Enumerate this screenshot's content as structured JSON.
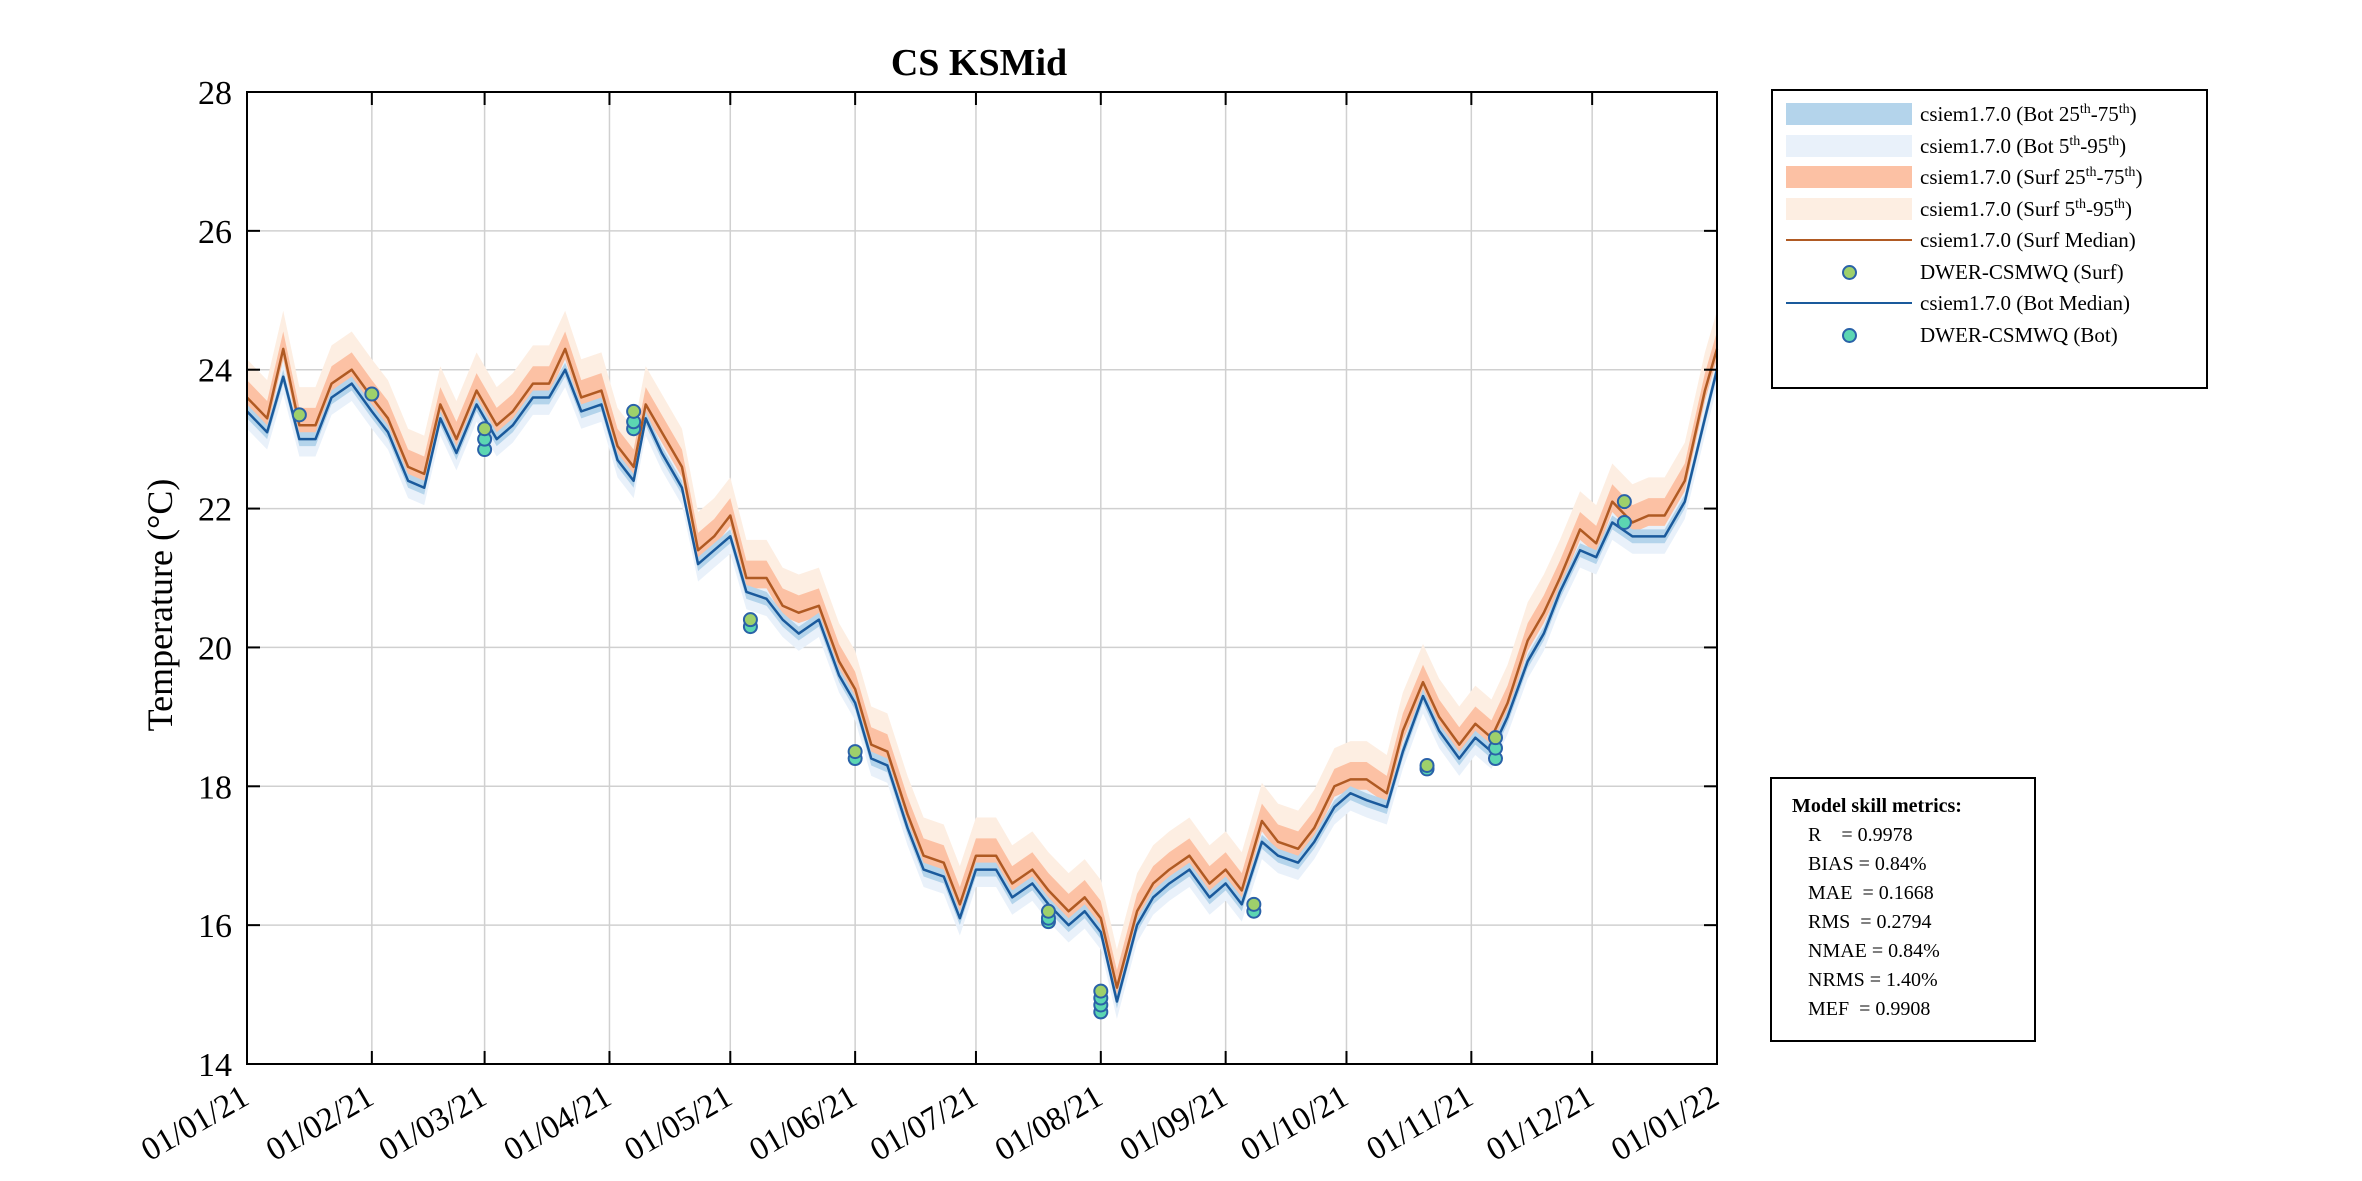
{
  "chart_data": {
    "type": "line",
    "title": "CS KSMid",
    "xlabel": "",
    "ylabel": "Temperature (°C)",
    "ylim": [
      14,
      28
    ],
    "yticks": [
      14,
      16,
      18,
      20,
      22,
      24,
      26,
      28
    ],
    "xlim": [
      "2021-01-01",
      "2022-01-01"
    ],
    "xticks": [
      "2021-01-01",
      "2021-02-01",
      "2021-03-01",
      "2021-04-01",
      "2021-05-01",
      "2021-06-01",
      "2021-07-01",
      "2021-08-01",
      "2021-09-01",
      "2021-10-01",
      "2021-11-01",
      "2021-12-01",
      "2022-01-01"
    ],
    "xticklabels": [
      "01/01/21",
      "01/02/21",
      "01/03/21",
      "01/04/21",
      "01/05/21",
      "01/06/21",
      "01/07/21",
      "01/08/21",
      "01/09/21",
      "01/10/21",
      "01/11/21",
      "01/12/21",
      "01/01/22"
    ],
    "grid": true,
    "legend_position": "outside-top-right",
    "colors": {
      "bot_iqr": "#b4d4eb",
      "bot_90": "#e9f1fa",
      "surf_iqr": "#fcc1a4",
      "surf_90": "#fdeee2",
      "surf_median": "#b05a23",
      "bot_median": "#1a5a9c",
      "obs_surf": "#9ed06b",
      "obs_bot": "#5cd6b2",
      "obs_edge": "#2a62a8"
    },
    "series": [
      {
        "name": "csiem1.7.0 (Surf Median)",
        "kind": "line",
        "x": [
          "2021-01-01",
          "2021-01-06",
          "2021-01-10",
          "2021-01-14",
          "2021-01-18",
          "2021-01-22",
          "2021-01-27",
          "2021-02-01",
          "2021-02-05",
          "2021-02-10",
          "2021-02-14",
          "2021-02-18",
          "2021-02-22",
          "2021-02-27",
          "2021-03-04",
          "2021-03-08",
          "2021-03-13",
          "2021-03-17",
          "2021-03-21",
          "2021-03-25",
          "2021-03-30",
          "2021-04-03",
          "2021-04-07",
          "2021-04-10",
          "2021-04-14",
          "2021-04-19",
          "2021-04-23",
          "2021-04-27",
          "2021-05-01",
          "2021-05-05",
          "2021-05-10",
          "2021-05-14",
          "2021-05-18",
          "2021-05-23",
          "2021-05-28",
          "2021-06-01",
          "2021-06-05",
          "2021-06-09",
          "2021-06-14",
          "2021-06-18",
          "2021-06-23",
          "2021-06-27",
          "2021-07-01",
          "2021-07-06",
          "2021-07-10",
          "2021-07-15",
          "2021-07-19",
          "2021-07-24",
          "2021-07-28",
          "2021-08-01",
          "2021-08-05",
          "2021-08-10",
          "2021-08-14",
          "2021-08-18",
          "2021-08-23",
          "2021-08-28",
          "2021-09-01",
          "2021-09-05",
          "2021-09-10",
          "2021-09-14",
          "2021-09-19",
          "2021-09-23",
          "2021-09-28",
          "2021-10-02",
          "2021-10-06",
          "2021-10-11",
          "2021-10-15",
          "2021-10-20",
          "2021-10-24",
          "2021-10-29",
          "2021-11-02",
          "2021-11-06",
          "2021-11-10",
          "2021-11-15",
          "2021-11-19",
          "2021-11-23",
          "2021-11-28",
          "2021-12-02",
          "2021-12-06",
          "2021-12-11",
          "2021-12-15",
          "2021-12-19",
          "2021-12-24",
          "2021-12-29",
          "2022-01-01"
        ],
        "y": [
          23.6,
          23.3,
          24.3,
          23.2,
          23.2,
          23.8,
          24.0,
          23.6,
          23.3,
          22.6,
          22.5,
          23.5,
          23.0,
          23.7,
          23.2,
          23.4,
          23.8,
          23.8,
          24.3,
          23.6,
          23.7,
          22.9,
          22.6,
          23.5,
          23.1,
          22.6,
          21.4,
          21.6,
          21.9,
          21.0,
          21.0,
          20.6,
          20.5,
          20.6,
          19.8,
          19.4,
          18.6,
          18.5,
          17.6,
          17.0,
          16.9,
          16.3,
          17.0,
          17.0,
          16.6,
          16.8,
          16.5,
          16.2,
          16.4,
          16.1,
          15.1,
          16.2,
          16.6,
          16.8,
          17.0,
          16.6,
          16.8,
          16.5,
          17.5,
          17.2,
          17.1,
          17.4,
          18.0,
          18.1,
          18.1,
          17.9,
          18.8,
          19.5,
          19.0,
          18.6,
          18.9,
          18.7,
          19.2,
          20.1,
          20.5,
          21.0,
          21.7,
          21.5,
          22.1,
          21.8,
          21.9,
          21.9,
          22.4,
          23.7,
          24.3
        ]
      },
      {
        "name": "csiem1.7.0 (Bot Median)",
        "kind": "line",
        "x": [
          "2021-01-01",
          "2021-01-06",
          "2021-01-10",
          "2021-01-14",
          "2021-01-18",
          "2021-01-22",
          "2021-01-27",
          "2021-02-01",
          "2021-02-05",
          "2021-02-10",
          "2021-02-14",
          "2021-02-18",
          "2021-02-22",
          "2021-02-27",
          "2021-03-04",
          "2021-03-08",
          "2021-03-13",
          "2021-03-17",
          "2021-03-21",
          "2021-03-25",
          "2021-03-30",
          "2021-04-03",
          "2021-04-07",
          "2021-04-10",
          "2021-04-14",
          "2021-04-19",
          "2021-04-23",
          "2021-04-27",
          "2021-05-01",
          "2021-05-05",
          "2021-05-10",
          "2021-05-14",
          "2021-05-18",
          "2021-05-23",
          "2021-05-28",
          "2021-06-01",
          "2021-06-05",
          "2021-06-09",
          "2021-06-14",
          "2021-06-18",
          "2021-06-23",
          "2021-06-27",
          "2021-07-01",
          "2021-07-06",
          "2021-07-10",
          "2021-07-15",
          "2021-07-19",
          "2021-07-24",
          "2021-07-28",
          "2021-08-01",
          "2021-08-05",
          "2021-08-10",
          "2021-08-14",
          "2021-08-18",
          "2021-08-23",
          "2021-08-28",
          "2021-09-01",
          "2021-09-05",
          "2021-09-10",
          "2021-09-14",
          "2021-09-19",
          "2021-09-23",
          "2021-09-28",
          "2021-10-02",
          "2021-10-06",
          "2021-10-11",
          "2021-10-15",
          "2021-10-20",
          "2021-10-24",
          "2021-10-29",
          "2021-11-02",
          "2021-11-06",
          "2021-11-10",
          "2021-11-15",
          "2021-11-19",
          "2021-11-23",
          "2021-11-28",
          "2021-12-02",
          "2021-12-06",
          "2021-12-11",
          "2021-12-15",
          "2021-12-19",
          "2021-12-24",
          "2021-12-29",
          "2022-01-01"
        ],
        "y": [
          23.4,
          23.1,
          23.9,
          23.0,
          23.0,
          23.6,
          23.8,
          23.4,
          23.1,
          22.4,
          22.3,
          23.3,
          22.8,
          23.5,
          23.0,
          23.2,
          23.6,
          23.6,
          24.0,
          23.4,
          23.5,
          22.7,
          22.4,
          23.3,
          22.8,
          22.3,
          21.2,
          21.4,
          21.6,
          20.8,
          20.7,
          20.4,
          20.2,
          20.4,
          19.6,
          19.2,
          18.4,
          18.3,
          17.4,
          16.8,
          16.7,
          16.1,
          16.8,
          16.8,
          16.4,
          16.6,
          16.3,
          16.0,
          16.2,
          15.9,
          14.9,
          16.0,
          16.4,
          16.6,
          16.8,
          16.4,
          16.6,
          16.3,
          17.2,
          17.0,
          16.9,
          17.2,
          17.7,
          17.9,
          17.8,
          17.7,
          18.5,
          19.3,
          18.8,
          18.4,
          18.7,
          18.5,
          19.0,
          19.8,
          20.2,
          20.8,
          21.4,
          21.3,
          21.8,
          21.6,
          21.6,
          21.6,
          22.1,
          23.3,
          24.0
        ]
      },
      {
        "name": "DWER-CSMWQ (Surf)",
        "kind": "scatter",
        "x": [
          "2021-01-14",
          "2021-02-01",
          "2021-03-01",
          "2021-04-07",
          "2021-05-06",
          "2021-06-01",
          "2021-07-19",
          "2021-08-01",
          "2021-09-08",
          "2021-10-21",
          "2021-11-07",
          "2021-12-09"
        ],
        "y": [
          23.35,
          23.65,
          23.15,
          23.4,
          20.4,
          18.5,
          16.2,
          15.05,
          16.3,
          18.3,
          18.7,
          22.1
        ]
      },
      {
        "name": "DWER-CSMWQ (Bot)",
        "kind": "scatter",
        "x": [
          "2021-03-01",
          "2021-03-01",
          "2021-04-07",
          "2021-04-07",
          "2021-05-06",
          "2021-06-01",
          "2021-07-19",
          "2021-07-19",
          "2021-08-01",
          "2021-08-01",
          "2021-08-01",
          "2021-09-08",
          "2021-10-21",
          "2021-11-07",
          "2021-11-07",
          "2021-12-09"
        ],
        "y": [
          22.85,
          23.0,
          23.15,
          23.25,
          20.3,
          18.4,
          16.05,
          16.1,
          14.75,
          14.85,
          14.95,
          16.2,
          18.25,
          18.4,
          18.55,
          21.8
        ]
      }
    ],
    "legend": [
      {
        "type": "patch",
        "color_key": "bot_iqr",
        "pre": "csiem1.7.0 (Bot 25",
        "sup1": "th",
        "mid": "-75",
        "sup2": "th",
        "post": ")"
      },
      {
        "type": "patch",
        "color_key": "bot_90",
        "pre": "csiem1.7.0 (Bot 5",
        "sup1": "th",
        "mid": "-95",
        "sup2": "th",
        "post": ")"
      },
      {
        "type": "patch",
        "color_key": "surf_iqr",
        "pre": "csiem1.7.0 (Surf 25",
        "sup1": "th",
        "mid": "-75",
        "sup2": "th",
        "post": ")"
      },
      {
        "type": "patch",
        "color_key": "surf_90",
        "pre": "csiem1.7.0 (Surf 5",
        "sup1": "th",
        "mid": "-95",
        "sup2": "th",
        "post": ")"
      },
      {
        "type": "line",
        "color_key": "surf_median",
        "pre": "csiem1.7.0 (Surf Median)",
        "sup1": "",
        "mid": "",
        "sup2": "",
        "post": ""
      },
      {
        "type": "marker",
        "color_key": "obs_surf",
        "pre": "DWER-CSMWQ (Surf)",
        "sup1": "",
        "mid": "",
        "sup2": "",
        "post": ""
      },
      {
        "type": "line",
        "color_key": "bot_median",
        "pre": "csiem1.7.0 (Bot Median)",
        "sup1": "",
        "mid": "",
        "sup2": "",
        "post": ""
      },
      {
        "type": "marker",
        "color_key": "obs_bot",
        "pre": "DWER-CSMWQ (Bot)",
        "sup1": "",
        "mid": "",
        "sup2": "",
        "post": ""
      }
    ]
  },
  "metrics": {
    "title": "Model skill metrics:",
    "lines": [
      "R    = 0.9978",
      "BIAS = 0.84%",
      "MAE  = 0.1668",
      "RMS  = 0.2794",
      "NMAE = 0.84%",
      "NRMS = 1.40%",
      "MEF  = 0.9908"
    ]
  }
}
